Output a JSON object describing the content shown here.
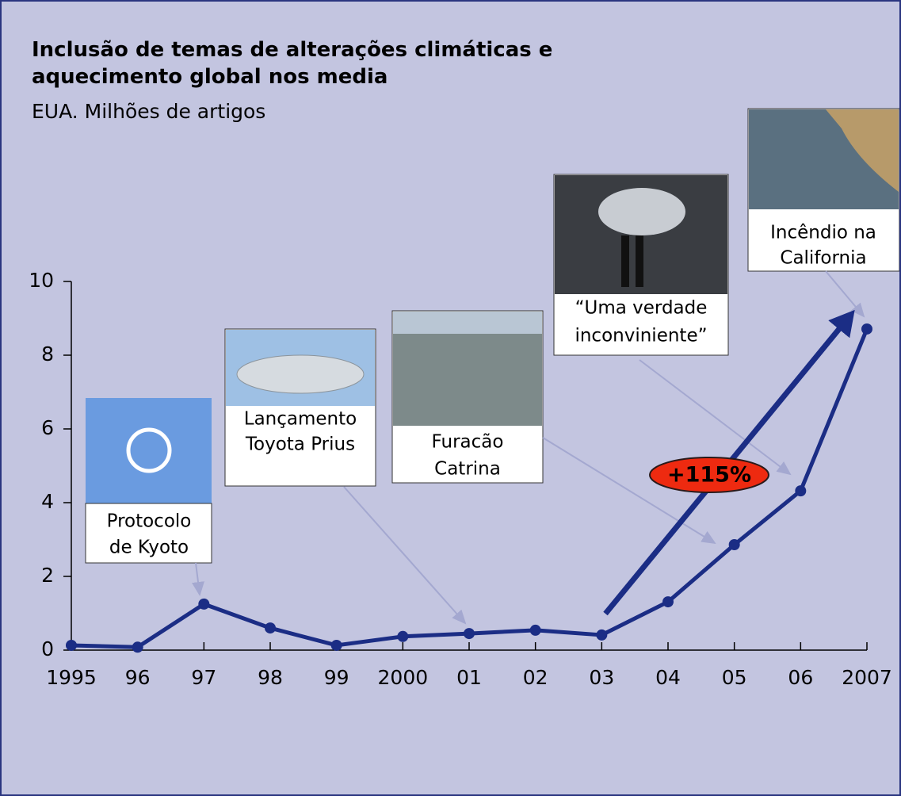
{
  "chart_data": {
    "type": "line",
    "title": "Inclusão de temas de alterações climáticas e aquecimento global nos media",
    "subtitle": "EUA. Milhões de artigos",
    "categories": [
      "1995",
      "96",
      "97",
      "98",
      "99",
      "2000",
      "01",
      "02",
      "03",
      "04",
      "05",
      "06",
      "2007"
    ],
    "series": [
      {
        "color": "#1b2d85",
        "values": [
          0.13,
          0.08,
          1.25,
          0.6,
          0.13,
          0.37,
          0.45,
          0.54,
          0.41,
          1.31,
          2.86,
          4.32,
          8.71
        ]
      }
    ],
    "ylim": [
      0,
      10
    ],
    "yticks": [
      0,
      2,
      4,
      6,
      8,
      10
    ],
    "annotations": [
      {
        "lines": [
          "Protocolo",
          "de Kyoto"
        ]
      },
      {
        "lines": [
          "Lançamento",
          "Toyota Prius"
        ]
      },
      {
        "lines": [
          "Furacão",
          "Catrina"
        ]
      },
      {
        "lines": [
          "“Uma verdade",
          "inconviniente”"
        ]
      },
      {
        "lines": [
          "Incêndio na",
          "California"
        ]
      },
      {
        "lines": [
          "+115%"
        ]
      }
    ]
  }
}
